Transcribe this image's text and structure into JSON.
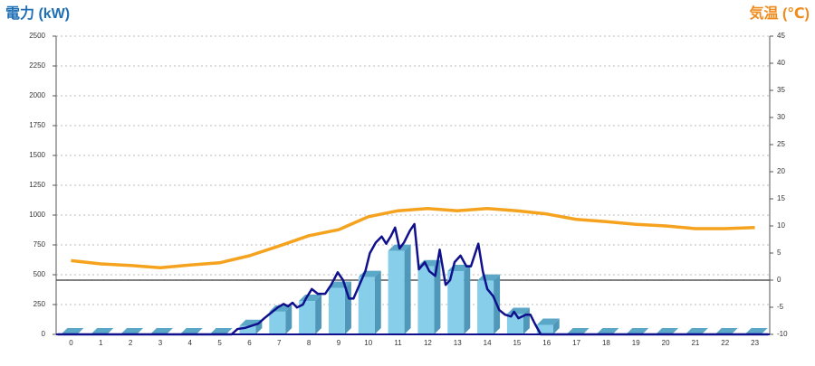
{
  "chart_data": {
    "type": "bar",
    "title": "電力 (kW)",
    "y2_title": "気温 (℃)",
    "categories": [
      "0",
      "1",
      "2",
      "3",
      "4",
      "5",
      "6",
      "7",
      "8",
      "9",
      "10",
      "11",
      "12",
      "13",
      "14",
      "15",
      "16",
      "17",
      "18",
      "19",
      "20",
      "21",
      "22",
      "23"
    ],
    "xlim": [
      -0.5,
      23.5
    ],
    "ylim": [
      0,
      2500
    ],
    "yticks": [
      0,
      250,
      500,
      750,
      1000,
      1250,
      1500,
      1750,
      2000,
      2250,
      2500
    ],
    "y2lim": [
      -10,
      45
    ],
    "y2ticks": [
      -10,
      -5,
      0,
      5,
      10,
      15,
      20,
      25,
      30,
      35,
      40,
      45
    ],
    "grid": true,
    "series": [
      {
        "type": "bar",
        "color": "#87ceeb",
        "values": [
          0,
          0,
          0,
          0,
          0,
          0,
          70,
          190,
          280,
          390,
          480,
          700,
          570,
          530,
          450,
          170,
          80,
          0,
          0,
          0,
          0,
          0,
          0,
          0
        ]
      },
      {
        "type": "line",
        "color": "#10108c",
        "x": [
          -0.45,
          5.4,
          5.6,
          5.87,
          6.3,
          6.5,
          6.7,
          6.95,
          7.15,
          7.3,
          7.45,
          7.6,
          7.8,
          7.9,
          8.1,
          8.3,
          8.55,
          8.75,
          8.97,
          9.15,
          9.35,
          9.5,
          9.7,
          9.9,
          10.05,
          10.25,
          10.45,
          10.6,
          10.75,
          10.9,
          11.05,
          11.2,
          11.4,
          11.55,
          11.7,
          11.9,
          12.05,
          12.25,
          12.4,
          12.6,
          12.75,
          12.9,
          13.1,
          13.3,
          13.45,
          13.7,
          13.85,
          14.0,
          14.2,
          14.4,
          14.6,
          14.8,
          14.9,
          15.05,
          15.3,
          15.45,
          15.6,
          15.8,
          23.45
        ],
        "values": [
          0,
          0,
          45,
          55,
          90,
          135,
          175,
          225,
          255,
          235,
          265,
          225,
          250,
          300,
          380,
          340,
          340,
          415,
          520,
          455,
          300,
          300,
          415,
          530,
          680,
          770,
          820,
          760,
          820,
          895,
          720,
          770,
          870,
          925,
          545,
          605,
          530,
          490,
          710,
          415,
          455,
          605,
          660,
          570,
          570,
          760,
          530,
          380,
          320,
          205,
          165,
          150,
          190,
          135,
          165,
          165,
          90,
          0,
          0
        ]
      },
      {
        "type": "line",
        "axis": "y2",
        "color": "#f5a31e",
        "values": [
          3.6,
          3.0,
          2.7,
          2.3,
          2.8,
          3.2,
          4.5,
          6.3,
          8.2,
          9.3,
          11.7,
          12.8,
          13.2,
          12.8,
          13.2,
          12.8,
          12.2,
          11.2,
          10.8,
          10.3,
          10.0,
          9.5,
          9.5,
          9.7
        ]
      }
    ]
  }
}
